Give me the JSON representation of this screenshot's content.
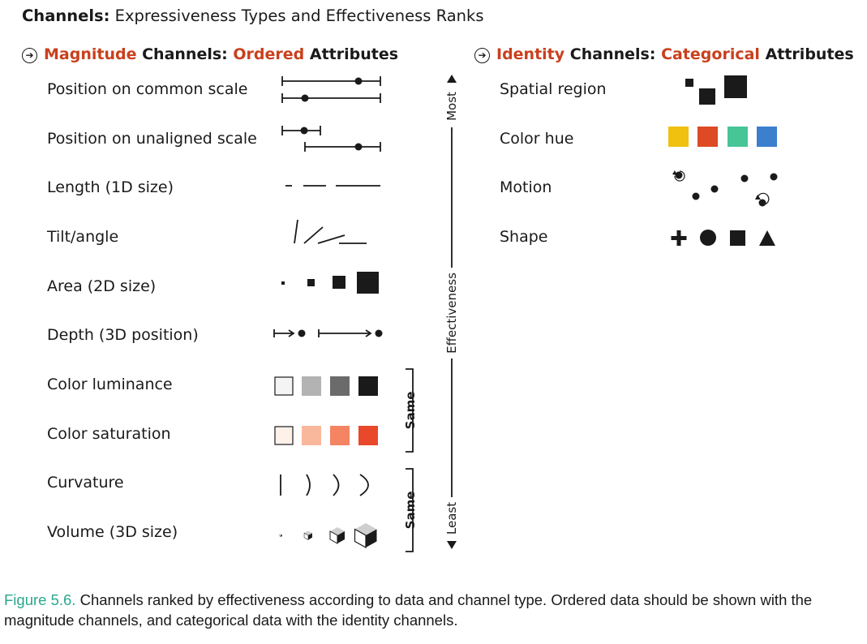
{
  "title": {
    "bold": "Channels:",
    "rest": "Expressiveness Types and Effectiveness Ranks"
  },
  "magnitude": {
    "w1": "Magnitude",
    "w2": "Channels:",
    "w3": "Ordered",
    "w4": "Attributes",
    "channels": [
      "Position on common scale",
      "Position on unaligned scale",
      "Length (1D size)",
      "Tilt/angle",
      "Area (2D size)",
      "Depth (3D position)",
      "Color luminance",
      "Color saturation",
      "Curvature",
      "Volume (3D size)"
    ]
  },
  "identity": {
    "w1": "Identity",
    "w2": "Channels:",
    "w3": "Categorical",
    "w4": "Attributes",
    "channels": [
      "Spatial region",
      "Color hue",
      "Motion",
      "Shape"
    ]
  },
  "effectiveness": {
    "most": "Most",
    "label": "Effectiveness",
    "least": "Least"
  },
  "brackets": {
    "same_1": "Same",
    "same_2": "Same"
  },
  "colors": {
    "accent": "#c9401d",
    "figure_label": "#2aa78f",
    "luminance": [
      "#f4f4f4",
      "#b3b3b3",
      "#6b6b6b",
      "#1a1a1a"
    ],
    "saturation": [
      "#fdf1ea",
      "#f9b79b",
      "#f48462",
      "#e9482a"
    ],
    "hue": [
      "#f0c10f",
      "#dd4a24",
      "#47c597",
      "#3b7fcd"
    ]
  },
  "caption": {
    "label": "Figure 5.6.",
    "text": "Channels ranked by effectiveness according to data and channel type. Ordered data should be shown with the magnitude channels, and categorical data with the identity channels."
  }
}
